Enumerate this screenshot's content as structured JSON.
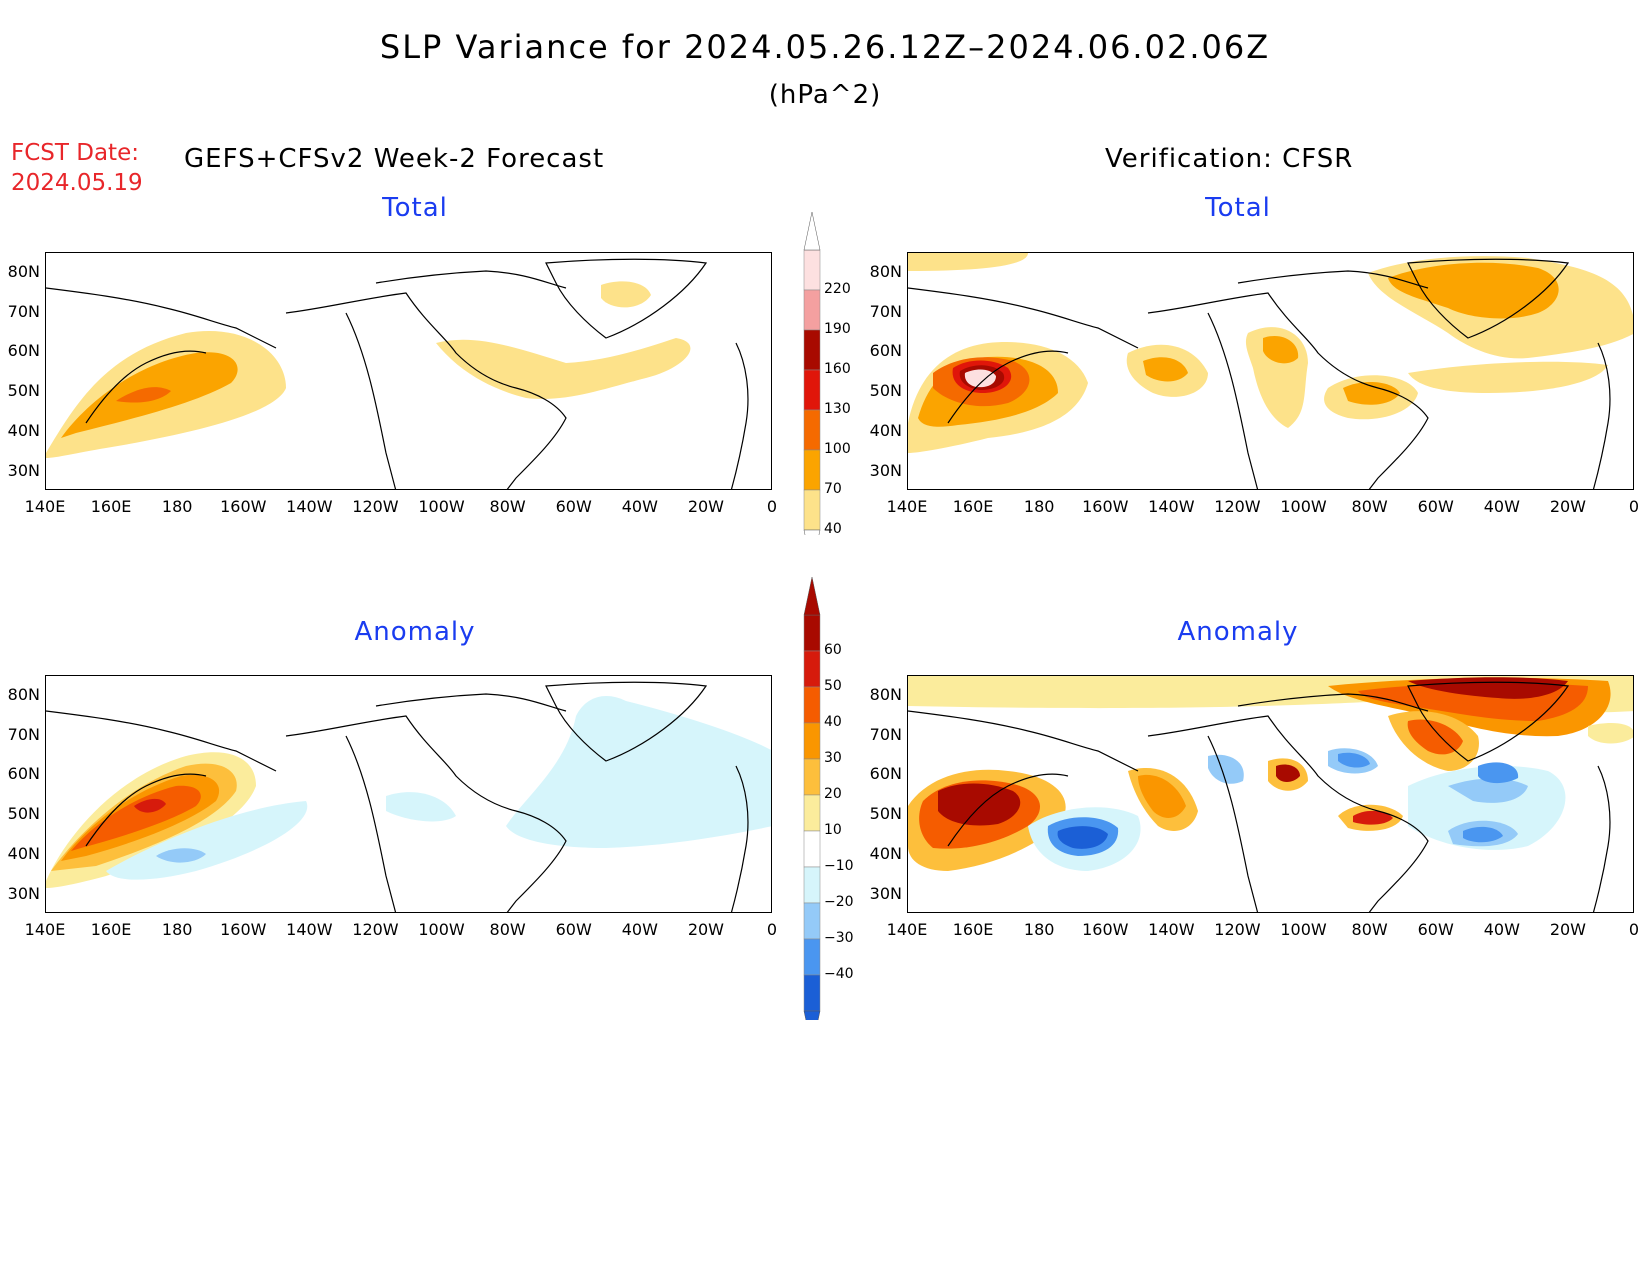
{
  "header": {
    "title": "SLP Variance for 2024.05.26.12Z–2024.06.02.06Z",
    "units": "(hPa^2)",
    "fcst_label": "FCST Date:",
    "fcst_date": "2024.05.19",
    "forecast_source": "GEFS+CFSv2 Week-2 Forecast",
    "verification_source": "Verification: CFSR"
  },
  "panels": {
    "forecast_total": {
      "title": "Total"
    },
    "verification_total": {
      "title": "Total"
    },
    "forecast_anomaly": {
      "title": "Anomaly"
    },
    "verification_anomaly": {
      "title": "Anomaly"
    }
  },
  "axes": {
    "lat_labels": [
      "80N",
      "70N",
      "60N",
      "50N",
      "40N",
      "30N"
    ],
    "lon_labels": [
      "140E",
      "160E",
      "180",
      "160W",
      "140W",
      "120W",
      "100W",
      "80W",
      "60W",
      "40W",
      "20W",
      "0"
    ]
  },
  "colorbars": {
    "total": {
      "labels": [
        "220",
        "190",
        "160",
        "130",
        "100",
        "70",
        "40"
      ],
      "colors": [
        "#fde0e0",
        "#f4a0a0",
        "#a80a00",
        "#e0160a",
        "#f56a00",
        "#fba400",
        "#fde28a"
      ]
    },
    "anomaly": {
      "labels": [
        "60",
        "50",
        "40",
        "30",
        "20",
        "10",
        "−10",
        "−20",
        "−30",
        "−40"
      ],
      "colors": [
        "#a80a00",
        "#d61b0c",
        "#f55c00",
        "#fa9600",
        "#fdbf3c",
        "#fbec9c",
        "#ffffff",
        "#d6f5fb",
        "#94caf8",
        "#4a96f0",
        "#1b5fd6"
      ]
    }
  },
  "chart_data": [
    {
      "type": "heatmap",
      "panel": "forecast_total",
      "title": "Total",
      "lon_range": [
        140,
        360
      ],
      "lat_range": [
        25,
        85
      ],
      "contour_levels": [
        40,
        70,
        100,
        130,
        160,
        190,
        220
      ]
    },
    {
      "type": "heatmap",
      "panel": "verification_total",
      "title": "Total",
      "lon_range": [
        140,
        360
      ],
      "lat_range": [
        25,
        85
      ],
      "contour_levels": [
        40,
        70,
        100,
        130,
        160,
        190,
        220
      ]
    },
    {
      "type": "heatmap",
      "panel": "forecast_anomaly",
      "title": "Anomaly",
      "lon_range": [
        140,
        360
      ],
      "lat_range": [
        25,
        85
      ],
      "contour_levels": [
        -40,
        -30,
        -20,
        -10,
        10,
        20,
        30,
        40,
        50,
        60
      ]
    },
    {
      "type": "heatmap",
      "panel": "verification_anomaly",
      "title": "Anomaly",
      "lon_range": [
        140,
        360
      ],
      "lat_range": [
        25,
        85
      ],
      "contour_levels": [
        -40,
        -30,
        -20,
        -10,
        10,
        20,
        30,
        40,
        50,
        60
      ]
    }
  ]
}
